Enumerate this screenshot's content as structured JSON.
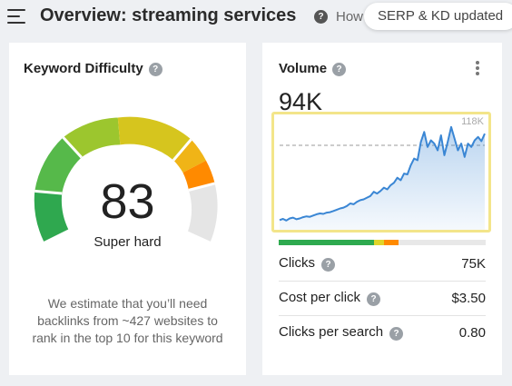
{
  "header": {
    "title": "Overview: streaming services",
    "help_glyph": "?",
    "how_text": "How",
    "serp_badge": "SERP & KD updated"
  },
  "kd_card": {
    "title": "Keyword Difficulty",
    "value": "83",
    "label": "Super hard",
    "description": "We estimate that you’ll need backlinks from ~427 websites to rank in the top 10 for this keyword",
    "gauge_fill_fraction": 0.83
  },
  "volume_card": {
    "title": "Volume",
    "value": "94K",
    "chart_max_label": "118K",
    "metrics": [
      {
        "label": "Clicks",
        "value": "75K"
      },
      {
        "label": "Cost per click",
        "value": "$3.50"
      },
      {
        "label": "Clicks per search",
        "value": "0.80"
      }
    ],
    "click_distribution": [
      {
        "color": "#2eaa4f",
        "share": 0.46
      },
      {
        "color": "#e0d52a",
        "share": 0.05
      },
      {
        "color": "#ff8a00",
        "share": 0.07
      }
    ]
  },
  "chart_data": {
    "type": "area",
    "title": "",
    "ylim": [
      0,
      118000
    ],
    "max_label": "118K",
    "reference_value": 94000,
    "grid": false,
    "values": [
      4000,
      5500,
      3500,
      6000,
      7000,
      5000,
      6000,
      7500,
      8500,
      8000,
      9500,
      11000,
      12000,
      11500,
      13000,
      13500,
      15000,
      16500,
      18000,
      19000,
      21000,
      24000,
      23000,
      26000,
      28000,
      29000,
      31000,
      33000,
      38000,
      36000,
      39000,
      43000,
      41000,
      46000,
      49000,
      55000,
      52000,
      60000,
      59000,
      70000,
      78000,
      76000,
      98000,
      110000,
      92000,
      100000,
      96000,
      88000,
      106000,
      82000,
      98000,
      116000,
      102000,
      88000,
      96000,
      80000,
      96000,
      92000,
      100000,
      104000,
      99000,
      108000
    ]
  },
  "colors": {
    "accent_line": "#3a86d4",
    "highlight_border": "#f3e58a",
    "kd_orange": "#ff8a00"
  }
}
